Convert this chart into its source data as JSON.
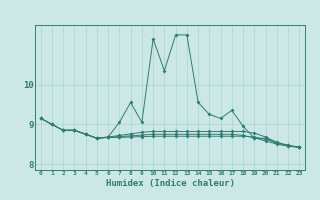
{
  "xlabel": "Humidex (Indice chaleur)",
  "bg_color": "#cce8e6",
  "line_color": "#2e7d73",
  "grid_color": "#a8d4d0",
  "xlim": [
    -0.5,
    23.5
  ],
  "ylim": [
    7.85,
    11.5
  ],
  "xticks": [
    0,
    1,
    2,
    3,
    4,
    5,
    6,
    7,
    8,
    9,
    10,
    11,
    12,
    13,
    14,
    15,
    16,
    17,
    18,
    19,
    20,
    21,
    22,
    23
  ],
  "yticks": [
    8,
    9,
    10
  ],
  "line_main_x": [
    0,
    1,
    2,
    3,
    4,
    5,
    6,
    7,
    8,
    9,
    10,
    11,
    12,
    13,
    14,
    15,
    16,
    17,
    18,
    19,
    20,
    21,
    22,
    23
  ],
  "line_main_y": [
    9.15,
    9.0,
    8.85,
    8.85,
    8.75,
    8.65,
    8.68,
    9.05,
    9.55,
    9.05,
    11.15,
    10.35,
    11.25,
    11.25,
    9.55,
    9.25,
    9.15,
    9.35,
    8.95,
    8.65,
    8.65,
    8.52,
    8.47,
    8.42
  ],
  "line_flat1_x": [
    0,
    1,
    2,
    3,
    4,
    5,
    6,
    7,
    8,
    9,
    10,
    11,
    12,
    13,
    14,
    15,
    16,
    17,
    18,
    19,
    20,
    21,
    22,
    23
  ],
  "line_flat1_y": [
    9.15,
    9.0,
    8.85,
    8.85,
    8.75,
    8.65,
    8.68,
    8.72,
    8.76,
    8.8,
    8.82,
    8.82,
    8.82,
    8.82,
    8.82,
    8.82,
    8.82,
    8.82,
    8.82,
    8.78,
    8.68,
    8.55,
    8.47,
    8.42
  ],
  "line_flat2_x": [
    0,
    1,
    2,
    3,
    4,
    5,
    6,
    7,
    8,
    9,
    10,
    11,
    12,
    13,
    14,
    15,
    16,
    17,
    18,
    19,
    20,
    21,
    22,
    23
  ],
  "line_flat2_y": [
    9.15,
    9.0,
    8.85,
    8.85,
    8.75,
    8.65,
    8.67,
    8.69,
    8.71,
    8.73,
    8.75,
    8.75,
    8.75,
    8.75,
    8.75,
    8.75,
    8.75,
    8.75,
    8.72,
    8.66,
    8.58,
    8.5,
    8.45,
    8.42
  ],
  "line_flat3_x": [
    2,
    3,
    4,
    5,
    6,
    7,
    8,
    9,
    10,
    11,
    12,
    13,
    14,
    15,
    16,
    17,
    18,
    19,
    20,
    21,
    22,
    23
  ],
  "line_flat3_y": [
    8.85,
    8.85,
    8.75,
    8.65,
    8.67,
    8.67,
    8.68,
    8.69,
    8.7,
    8.7,
    8.7,
    8.7,
    8.7,
    8.7,
    8.7,
    8.7,
    8.7,
    8.68,
    8.62,
    8.54,
    8.46,
    8.42
  ]
}
